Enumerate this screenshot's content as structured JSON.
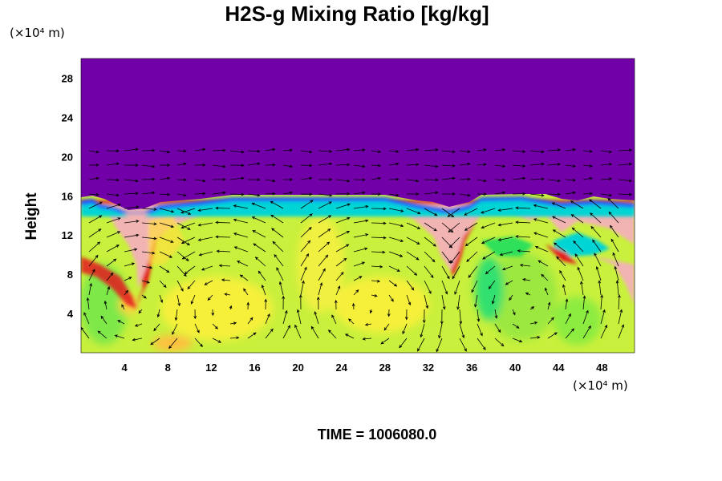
{
  "chart_data": {
    "type": "heatmap",
    "title": "H2S-g Mixing Ratio [kg/kg]",
    "ylabel": "Height",
    "x_unit": "(×10⁴ m)",
    "y_unit": "(×10⁴ m)",
    "footer": "TIME = 1006080.0",
    "xlim": [
      0,
      51
    ],
    "ylim": [
      0,
      30
    ],
    "x_ticks": [
      "4",
      "8",
      "12",
      "16",
      "20",
      "24",
      "28",
      "32",
      "36",
      "40",
      "44",
      "48"
    ],
    "x_tick_values": [
      4,
      8,
      12,
      16,
      20,
      24,
      28,
      32,
      36,
      40,
      44,
      48
    ],
    "y_ticks": [
      "4",
      "8",
      "12",
      "16",
      "20",
      "24",
      "28"
    ],
    "y_tick_values": [
      4,
      8,
      12,
      16,
      20,
      24,
      28
    ],
    "top_layer_base_height": 15.5,
    "colors": {
      "upper_layer": "#7100a8",
      "background_field": "#c8f03c",
      "high_values": "#f2b3b3",
      "edge_red": "#e41a1c",
      "edge_cyan": "#00d4d4",
      "edge_blue": "#1f55ff",
      "low_green": "#2ee05a",
      "peak_yellow": "#ffff3a",
      "vector": "#000000"
    },
    "vector_field": true
  }
}
